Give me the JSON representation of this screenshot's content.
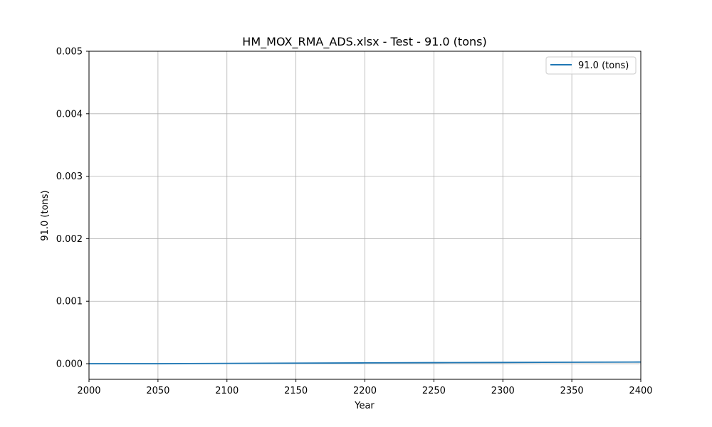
{
  "chart_data": {
    "type": "line",
    "title": "HM_MOX_RMA_ADS.xlsx - Test - 91.0 (tons)",
    "xlabel": "Year",
    "ylabel": "91.0 (tons)",
    "xlim": [
      2000,
      2400
    ],
    "ylim": [
      -0.00025,
      0.005
    ],
    "xticks": [
      2000,
      2050,
      2100,
      2150,
      2200,
      2250,
      2300,
      2350,
      2400
    ],
    "xtick_labels": [
      "2000",
      "2050",
      "2100",
      "2150",
      "2200",
      "2250",
      "2300",
      "2350",
      "2400"
    ],
    "yticks": [
      0.0,
      0.001,
      0.002,
      0.003,
      0.004,
      0.005
    ],
    "ytick_labels": [
      "0.000",
      "0.001",
      "0.002",
      "0.003",
      "0.004",
      "0.005"
    ],
    "grid": true,
    "legend_position": "top-right",
    "series": [
      {
        "name": "91.0 (tons)",
        "color": "#1f77b4",
        "x": [
          2000,
          2050,
          2100,
          2150,
          2200,
          2250,
          2300,
          2350,
          2400
        ],
        "y": [
          0.0,
          0.0,
          5e-06,
          9e-06,
          1.3e-05,
          1.7e-05,
          2e-05,
          2.3e-05,
          2.7e-05
        ]
      }
    ]
  }
}
